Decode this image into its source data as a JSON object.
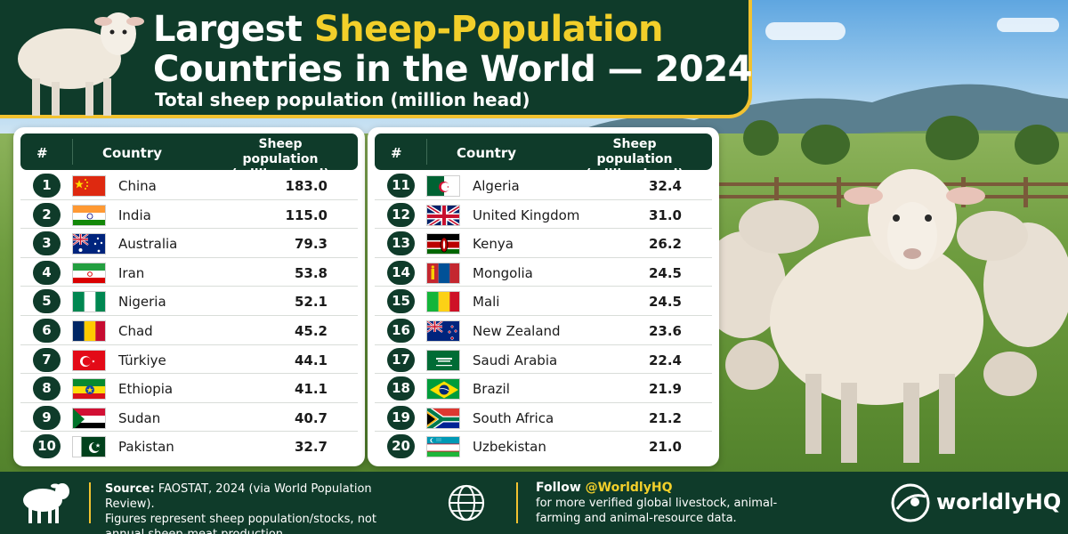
{
  "header": {
    "title_part1": "Largest ",
    "title_highlight": "Sheep-Population",
    "title_line2": "Countries in the World — 2024",
    "subtitle": "Total sheep population (million head)"
  },
  "table_headers": {
    "rank": "#",
    "country": "Country",
    "population_line1": "Sheep population",
    "population_line2": "(million head)"
  },
  "left_rows": [
    {
      "rank": "1",
      "country": "China",
      "value": "183.0",
      "flag": "china"
    },
    {
      "rank": "2",
      "country": "India",
      "value": "115.0",
      "flag": "india"
    },
    {
      "rank": "3",
      "country": "Australia",
      "value": "79.3",
      "flag": "australia"
    },
    {
      "rank": "4",
      "country": "Iran",
      "value": "53.8",
      "flag": "iran"
    },
    {
      "rank": "5",
      "country": "Nigeria",
      "value": "52.1",
      "flag": "nigeria"
    },
    {
      "rank": "6",
      "country": "Chad",
      "value": "45.2",
      "flag": "chad"
    },
    {
      "rank": "7",
      "country": "Türkiye",
      "value": "44.1",
      "flag": "turkiye"
    },
    {
      "rank": "8",
      "country": "Ethiopia",
      "value": "41.1",
      "flag": "ethiopia"
    },
    {
      "rank": "9",
      "country": "Sudan",
      "value": "40.7",
      "flag": "sudan"
    },
    {
      "rank": "10",
      "country": "Pakistan",
      "value": "32.7",
      "flag": "pakistan"
    }
  ],
  "right_rows": [
    {
      "rank": "11",
      "country": "Algeria",
      "value": "32.4",
      "flag": "algeria"
    },
    {
      "rank": "12",
      "country": "United Kingdom",
      "value": "31.0",
      "flag": "uk"
    },
    {
      "rank": "13",
      "country": "Kenya",
      "value": "26.2",
      "flag": "kenya"
    },
    {
      "rank": "14",
      "country": "Mongolia",
      "value": "24.5",
      "flag": "mongolia"
    },
    {
      "rank": "15",
      "country": "Mali",
      "value": "24.5",
      "flag": "mali"
    },
    {
      "rank": "16",
      "country": "New Zealand",
      "value": "23.6",
      "flag": "newzealand"
    },
    {
      "rank": "17",
      "country": "Saudi Arabia",
      "value": "22.4",
      "flag": "saudi"
    },
    {
      "rank": "18",
      "country": "Brazil",
      "value": "21.9",
      "flag": "brazil"
    },
    {
      "rank": "19",
      "country": "South Africa",
      "value": "21.2",
      "flag": "southafrica"
    },
    {
      "rank": "20",
      "country": "Uzbekistan",
      "value": "21.0",
      "flag": "uzbekistan"
    }
  ],
  "footer": {
    "source_label": "Source:",
    "source_text": " FAOSTAT, 2024 (via World Population Review).",
    "note": "Figures represent sheep population/stocks, not annual sheep-meat production.",
    "follow_lead": "Follow ",
    "handle": "@WorldlyHQ",
    "follow_text": "for more verified global livestock, animal-farming and animal-resource data.",
    "brand": "worldlyHQ"
  },
  "icons": {
    "header": "sheep-icon",
    "footer_left": "sheep-silhouette-icon",
    "footer_mid": "globe-icon",
    "brand": "worldlyhq-logo-icon"
  },
  "colors": {
    "dark_green": "#0f3b2a",
    "accent_yellow": "#f2c230",
    "title_highlight": "#f2cf2a"
  }
}
